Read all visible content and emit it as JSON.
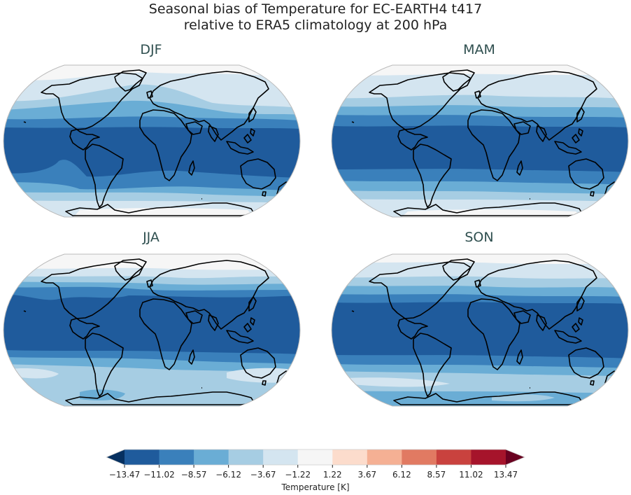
{
  "title_line1": "Seasonal bias of Temperature for EC-EARTH4 t417",
  "title_line2": "relative to ERA5 climatology at 200 hPa",
  "panels": [
    {
      "id": "DJF",
      "title": "DJF"
    },
    {
      "id": "MAM",
      "title": "MAM"
    },
    {
      "id": "JJA",
      "title": "JJA"
    },
    {
      "id": "SON",
      "title": "SON"
    }
  ],
  "colorbar": {
    "label": "Temperature [K]",
    "ticks": [
      "−13.47",
      "−11.02",
      "−8.57",
      "−6.12",
      "−3.67",
      "−1.22",
      "1.22",
      "3.67",
      "6.12",
      "8.57",
      "11.02",
      "13.47"
    ],
    "colors": [
      "#1f5b9c",
      "#3a80bb",
      "#6aadd5",
      "#a6cde3",
      "#d4e5f0",
      "#f6f6f6",
      "#fcdccc",
      "#f5b094",
      "#e17a62",
      "#c9423e",
      "#a6142b"
    ],
    "under_color": "#063060",
    "over_color": "#6a0120"
  },
  "chart_data": {
    "type": "heatmap",
    "title": "Seasonal bias of Temperature for EC-EARTH4 t417 relative to ERA5 climatology at 200 hPa",
    "subplots": [
      "DJF",
      "MAM",
      "JJA",
      "SON"
    ],
    "projection": "Robinson (global)",
    "colorbar_label": "Temperature [K]",
    "levels": [
      -13.47,
      -11.02,
      -8.57,
      -6.12,
      -3.67,
      -1.22,
      1.22,
      3.67,
      6.12,
      8.57,
      11.02,
      13.47
    ],
    "extend": "both",
    "colormap": "RdBu_r",
    "zonal_pattern_description": {
      "DJF": {
        "tropics": "-13.47 to -11.02",
        "subtropics": "-11.02 to -6.12",
        "midlatitudes": "-6.12 to -1.22",
        "poles": "-1.22 to 1.22"
      },
      "MAM": {
        "tropics": "-13.47 to -11.02",
        "subtropics": "-11.02 to -6.12",
        "midlatitudes": "-6.12 to -1.22",
        "poles": "-1.22 to 1.22"
      },
      "JJA": {
        "tropics": "-13.47 to -11.02",
        "subtropics": "-11.02 to -6.12",
        "midlatitudes": "-6.12 to -3.67",
        "poles": "-3.67 to 1.22"
      },
      "SON": {
        "tropics": "-13.47 to -11.02",
        "subtropics": "-11.02 to -6.12",
        "midlatitudes": "-6.12 to -1.22",
        "poles": "-8.57 to 1.22"
      }
    }
  }
}
